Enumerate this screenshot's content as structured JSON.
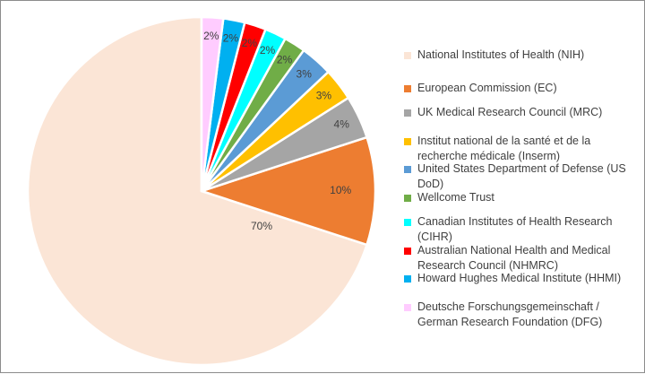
{
  "chart_data": {
    "type": "pie",
    "title": "",
    "legend_position": "right",
    "slices": [
      {
        "label": "National Institutes of Health (NIH)",
        "value": 70,
        "display": "70%",
        "color": "#FBE5D6"
      },
      {
        "label": "European Commission (EC)",
        "value": 10,
        "display": "10%",
        "color": "#ED7D31"
      },
      {
        "label": "UK Medical Research Council (MRC)",
        "value": 4,
        "display": "4%",
        "color": "#A5A5A5"
      },
      {
        "label": "Institut national de la santé et de la recherche médicale (Inserm)",
        "value": 3,
        "display": "3%",
        "color": "#FFC000"
      },
      {
        "label": "United States Department of Defense (US DoD)",
        "value": 3,
        "display": "3%",
        "color": "#5B9BD5"
      },
      {
        "label": "Wellcome Trust",
        "value": 2,
        "display": "2%",
        "color": "#70AD47"
      },
      {
        "label": "Canadian Institutes of Health Research (CIHR)",
        "value": 2,
        "display": "2%",
        "color": "#00FFFF"
      },
      {
        "label": "Australian National Health and Medical Research Council (NHMRC)",
        "value": 2,
        "display": "2%",
        "color": "#FF0000"
      },
      {
        "label": "Howard Hughes Medical Institute (HHMI)",
        "value": 2,
        "display": "2%",
        "color": "#00B0F0"
      },
      {
        "label": "Deutsche Forschungsgemeinschaft / German Research Foundation (DFG)",
        "value": 2,
        "display": "2%",
        "color": "#FFCCFF"
      }
    ]
  }
}
